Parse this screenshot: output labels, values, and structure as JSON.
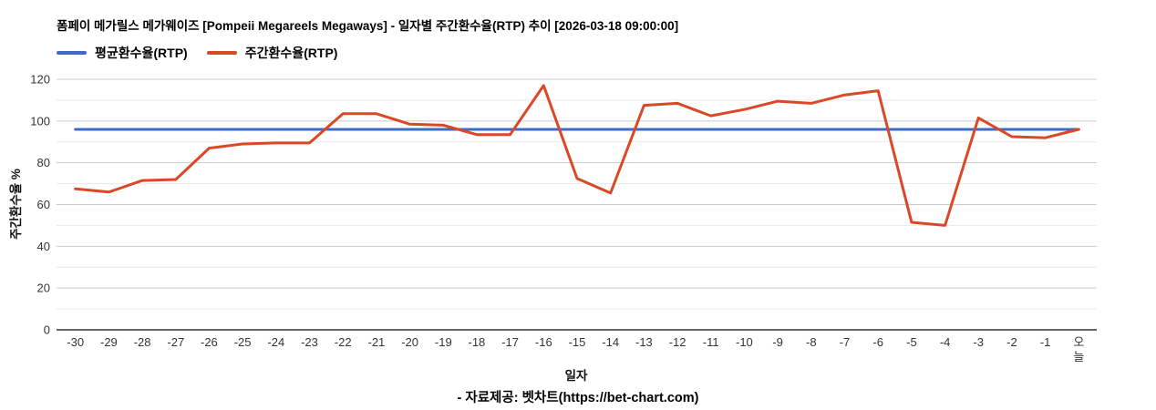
{
  "title": "폼페이 메가릴스 메가웨이즈 [Pompeii Megareels Megaways] - 일자별 주간환수율(RTP) 추이 [2026-03-18 09:00:00]",
  "legend": {
    "items": [
      {
        "label": "평균환수율(RTP)",
        "color": "#3e6cc4"
      },
      {
        "label": "주간환수율(RTP)",
        "color": "#db4826"
      }
    ]
  },
  "axis": {
    "x_title": "일자",
    "y_title": "주간환수율 %"
  },
  "footer": "- 자료제공: 벳차트(https://bet-chart.com)",
  "chart_data": {
    "type": "line",
    "title": "폼페이 메가릴스 메가웨이즈 [Pompeii Megareels Megaways] - 일자별 주간환수율(RTP) 추이 [2026-03-18 09:00:00]",
    "xlabel": "일자",
    "ylabel": "주간환수율 %",
    "categories": [
      "-30",
      "-29",
      "-28",
      "-27",
      "-26",
      "-25",
      "-24",
      "-23",
      "-22",
      "-21",
      "-20",
      "-19",
      "-18",
      "-17",
      "-16",
      "-15",
      "-14",
      "-13",
      "-12",
      "-11",
      "-10",
      "-9",
      "-8",
      "-7",
      "-6",
      "-5",
      "-4",
      "-3",
      "-2",
      "-1",
      "오늘"
    ],
    "series": [
      {
        "name": "평균환수율(RTP)",
        "color": "#3e6cc4",
        "values": [
          96,
          96,
          96,
          96,
          96,
          96,
          96,
          96,
          96,
          96,
          96,
          96,
          96,
          96,
          96,
          96,
          96,
          96,
          96,
          96,
          96,
          96,
          96,
          96,
          96,
          96,
          96,
          96,
          96,
          96,
          96
        ]
      },
      {
        "name": "주간환수율(RTP)",
        "color": "#db4826",
        "values": [
          67.5,
          66,
          71.5,
          72,
          87,
          89,
          89.5,
          89.5,
          103.5,
          103.5,
          98.5,
          98,
          93.5,
          93.5,
          117,
          72.5,
          65.5,
          107.5,
          108.5,
          102.5,
          105.5,
          109.5,
          108.5,
          112.5,
          114.5,
          51.5,
          50,
          101.5,
          92.5,
          92,
          96
        ]
      }
    ],
    "ylim": [
      0,
      120
    ],
    "yticks": [
      0,
      20,
      40,
      60,
      80,
      100,
      120
    ],
    "grid": {
      "show": true,
      "minor_step": 10,
      "major_step": 20
    },
    "legend_position": "top-left",
    "colors": {
      "grid_major": "#cccccc",
      "grid_minor": "#e9e9e9",
      "axis_line": "#333333",
      "tick_label": "#333333"
    }
  }
}
